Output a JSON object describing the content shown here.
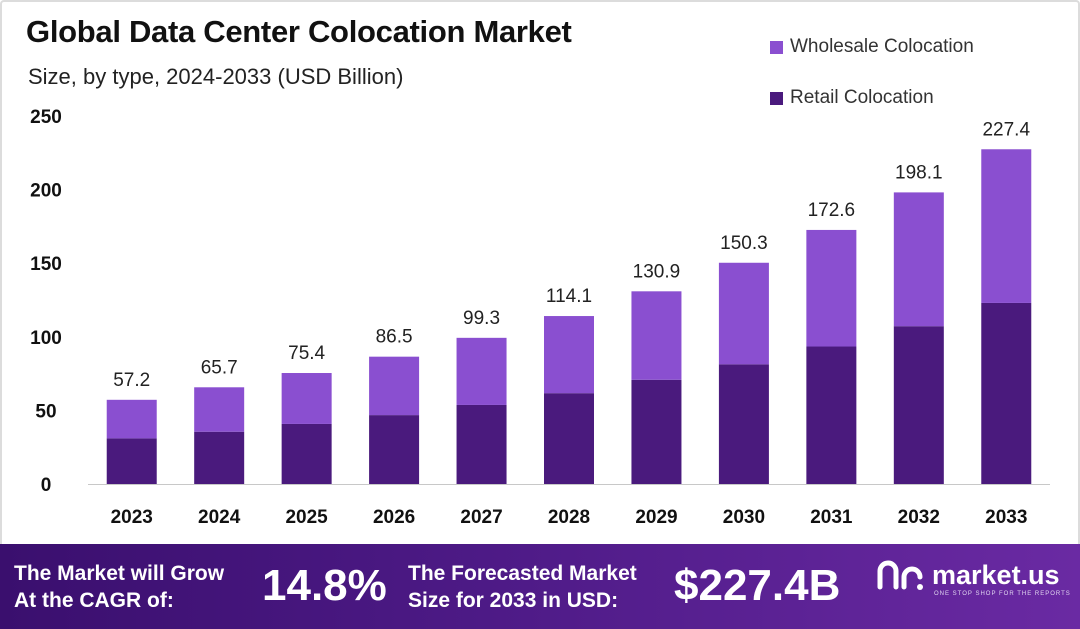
{
  "header": {
    "title": "Global Data Center Colocation Market",
    "subtitle": "Size, by type, 2024-2033 (USD Billion)"
  },
  "colors": {
    "wholesale": "#8a4fd0",
    "retail": "#4a1a7d",
    "footer_bg": "#4d1a86"
  },
  "chart_data": {
    "type": "bar",
    "stacked": true,
    "categories": [
      "2023",
      "2024",
      "2025",
      "2026",
      "2027",
      "2028",
      "2029",
      "2030",
      "2031",
      "2032",
      "2033"
    ],
    "series": [
      {
        "name": "Retail Colocation",
        "values": [
          31.0,
          35.5,
          40.8,
          46.8,
          53.7,
          61.7,
          70.8,
          81.3,
          93.4,
          107.2,
          123.0
        ]
      },
      {
        "name": "Wholesale Colocation",
        "values": [
          26.2,
          30.2,
          34.6,
          39.7,
          45.6,
          52.4,
          60.1,
          69.0,
          79.2,
          90.9,
          104.4
        ]
      }
    ],
    "totals": [
      "57.2",
      "65.7",
      "75.4",
      "86.5",
      "99.3",
      "114.1",
      "130.9",
      "150.3",
      "172.6",
      "198.1",
      "227.4"
    ],
    "ylim": [
      0,
      250
    ],
    "yticks": [
      "0",
      "50",
      "100",
      "150",
      "200",
      "250"
    ],
    "grid": false,
    "legend_position": "top-right",
    "xlabel": "",
    "ylabel": ""
  },
  "legend": {
    "wholesale_label": "Wholesale Colocation",
    "retail_label": "Retail Colocation"
  },
  "footer": {
    "cagr_label_line1": "The Market will Grow",
    "cagr_label_line2": "At the CAGR of:",
    "cagr_value": "14.8%",
    "forecast_label_line1": "The Forecasted Market",
    "forecast_label_line2": "Size for 2033 in USD:",
    "forecast_value": "$227.4B",
    "logo_text": "market.us",
    "logo_tagline": "ONE STOP SHOP FOR THE REPORTS"
  }
}
